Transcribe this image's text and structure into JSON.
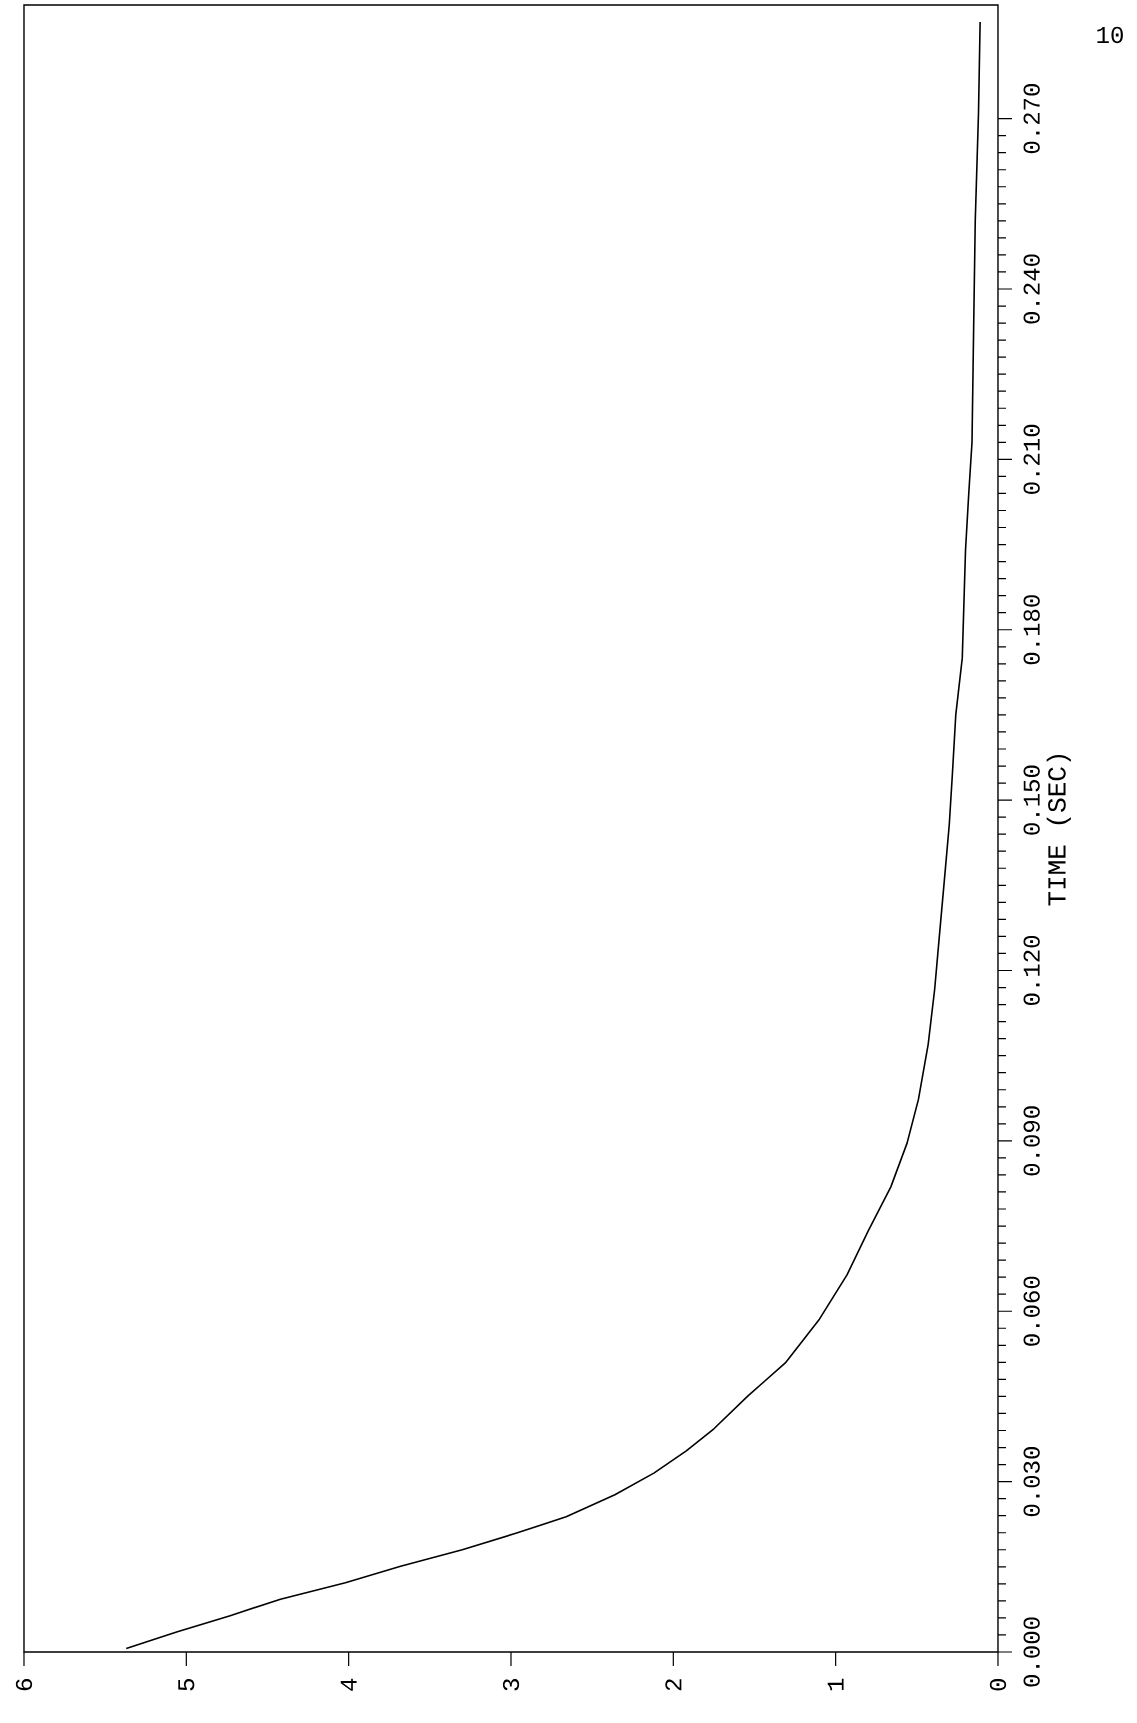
{
  "chart_data": {
    "type": "line",
    "ylabel": "TIME (SEC)",
    "annotations": [
      "10"
    ],
    "x": [
      5.37,
      5.06,
      4.73,
      4.42,
      4.02,
      3.68,
      3.3,
      2.97,
      2.66,
      2.36,
      2.12,
      1.92,
      1.75,
      1.54,
      1.31,
      1.1,
      0.93,
      0.8,
      0.66,
      0.56,
      0.49,
      0.43,
      0.39,
      0.36,
      0.33,
      0.3,
      0.28,
      0.26,
      0.22,
      0.2,
      0.18,
      0.16,
      0.15,
      0.14,
      0.12,
      0.11
    ],
    "values": [
      0.0006,
      0.0035,
      0.0064,
      0.0093,
      0.0122,
      0.0151,
      0.018,
      0.0209,
      0.0238,
      0.0277,
      0.0315,
      0.0354,
      0.0393,
      0.0451,
      0.0509,
      0.0586,
      0.0664,
      0.0741,
      0.0819,
      0.0896,
      0.0973,
      0.107,
      0.1167,
      0.1264,
      0.136,
      0.1457,
      0.155,
      0.165,
      0.175,
      0.194,
      0.204,
      0.213,
      0.233,
      0.252,
      0.271,
      0.287
    ],
    "color": "#000000",
    "xlim": [
      6,
      0
    ],
    "ylim": [
      0,
      0.29
    ],
    "xticks": [
      0,
      1,
      2,
      3,
      4,
      5,
      6
    ],
    "yticks": [
      {
        "value": 0,
        "label": "0.000"
      },
      {
        "value": 0.03,
        "label": "0.030"
      },
      {
        "value": 0.06,
        "label": "0.060"
      },
      {
        "value": 0.09,
        "label": "0.090"
      },
      {
        "value": 0.12,
        "label": "0.120"
      },
      {
        "value": 0.15,
        "label": "0.150"
      },
      {
        "value": 0.18,
        "label": "0.180"
      },
      {
        "value": 0.21,
        "label": "0.210"
      },
      {
        "value": 0.24,
        "label": "0.240"
      },
      {
        "value": 0.27,
        "label": "0.270"
      }
    ]
  }
}
